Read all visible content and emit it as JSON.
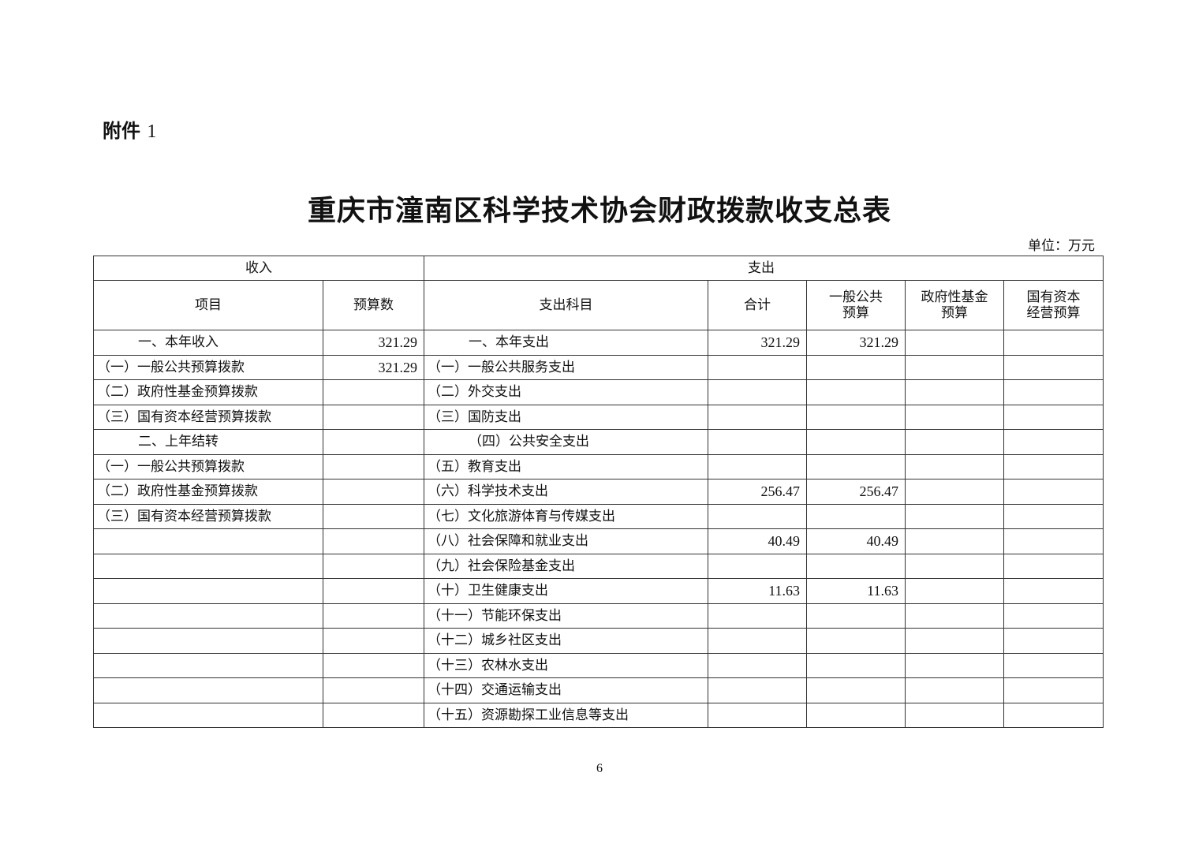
{
  "attachment": {
    "label": "附件",
    "number": "1"
  },
  "title": "重庆市潼南区科学技术协会财政拨款收支总表",
  "unit": "单位：万元",
  "table": {
    "income_header": "收入",
    "expense_header": "支出",
    "columns": [
      "项目",
      "预算数",
      "支出科目",
      "合计",
      "一般公共\n预算",
      "政府性基金\n预算",
      "国有资本\n经营预算"
    ],
    "rows": [
      {
        "item": "一、本年收入",
        "budget": "321.29",
        "expense": "一、本年支出",
        "total": "321.29",
        "general": "321.29",
        "fund": "",
        "state": "",
        "heading": true
      },
      {
        "item": "（一）一般公共预算拨款",
        "budget": "321.29",
        "expense": "（一）一般公共服务支出",
        "total": "",
        "general": "",
        "fund": "",
        "state": ""
      },
      {
        "item": "（二）政府性基金预算拨款",
        "budget": "",
        "expense": "（二）外交支出",
        "total": "",
        "general": "",
        "fund": "",
        "state": ""
      },
      {
        "item": "（三）国有资本经营预算拨款",
        "budget": "",
        "expense": "（三）国防支出",
        "total": "",
        "general": "",
        "fund": "",
        "state": ""
      },
      {
        "item": "二、上年结转",
        "budget": "",
        "expense": "（四）公共安全支出",
        "total": "",
        "general": "",
        "fund": "",
        "state": "",
        "heading": true
      },
      {
        "item": "（一）一般公共预算拨款",
        "budget": "",
        "expense": "（五）教育支出",
        "total": "",
        "general": "",
        "fund": "",
        "state": ""
      },
      {
        "item": "（二）政府性基金预算拨款",
        "budget": "",
        "expense": "（六）科学技术支出",
        "total": "256.47",
        "general": "256.47",
        "fund": "",
        "state": ""
      },
      {
        "item": "（三）国有资本经营预算拨款",
        "budget": "",
        "expense": "（七）文化旅游体育与传媒支出",
        "total": "",
        "general": "",
        "fund": "",
        "state": ""
      },
      {
        "item": "",
        "budget": "",
        "expense": "（八）社会保障和就业支出",
        "total": "40.49",
        "general": "40.49",
        "fund": "",
        "state": ""
      },
      {
        "item": "",
        "budget": "",
        "expense": "（九）社会保险基金支出",
        "total": "",
        "general": "",
        "fund": "",
        "state": ""
      },
      {
        "item": "",
        "budget": "",
        "expense": "（十）卫生健康支出",
        "total": "11.63",
        "general": "11.63",
        "fund": "",
        "state": ""
      },
      {
        "item": "",
        "budget": "",
        "expense": "（十一）节能环保支出",
        "total": "",
        "general": "",
        "fund": "",
        "state": ""
      },
      {
        "item": "",
        "budget": "",
        "expense": "（十二）城乡社区支出",
        "total": "",
        "general": "",
        "fund": "",
        "state": ""
      },
      {
        "item": "",
        "budget": "",
        "expense": "（十三）农林水支出",
        "total": "",
        "general": "",
        "fund": "",
        "state": ""
      },
      {
        "item": "",
        "budget": "",
        "expense": "（十四）交通运输支出",
        "total": "",
        "general": "",
        "fund": "",
        "state": ""
      },
      {
        "item": "",
        "budget": "",
        "expense": "（十五）资源勘探工业信息等支出",
        "total": "",
        "general": "",
        "fund": "",
        "state": ""
      }
    ]
  },
  "page_number": "6"
}
